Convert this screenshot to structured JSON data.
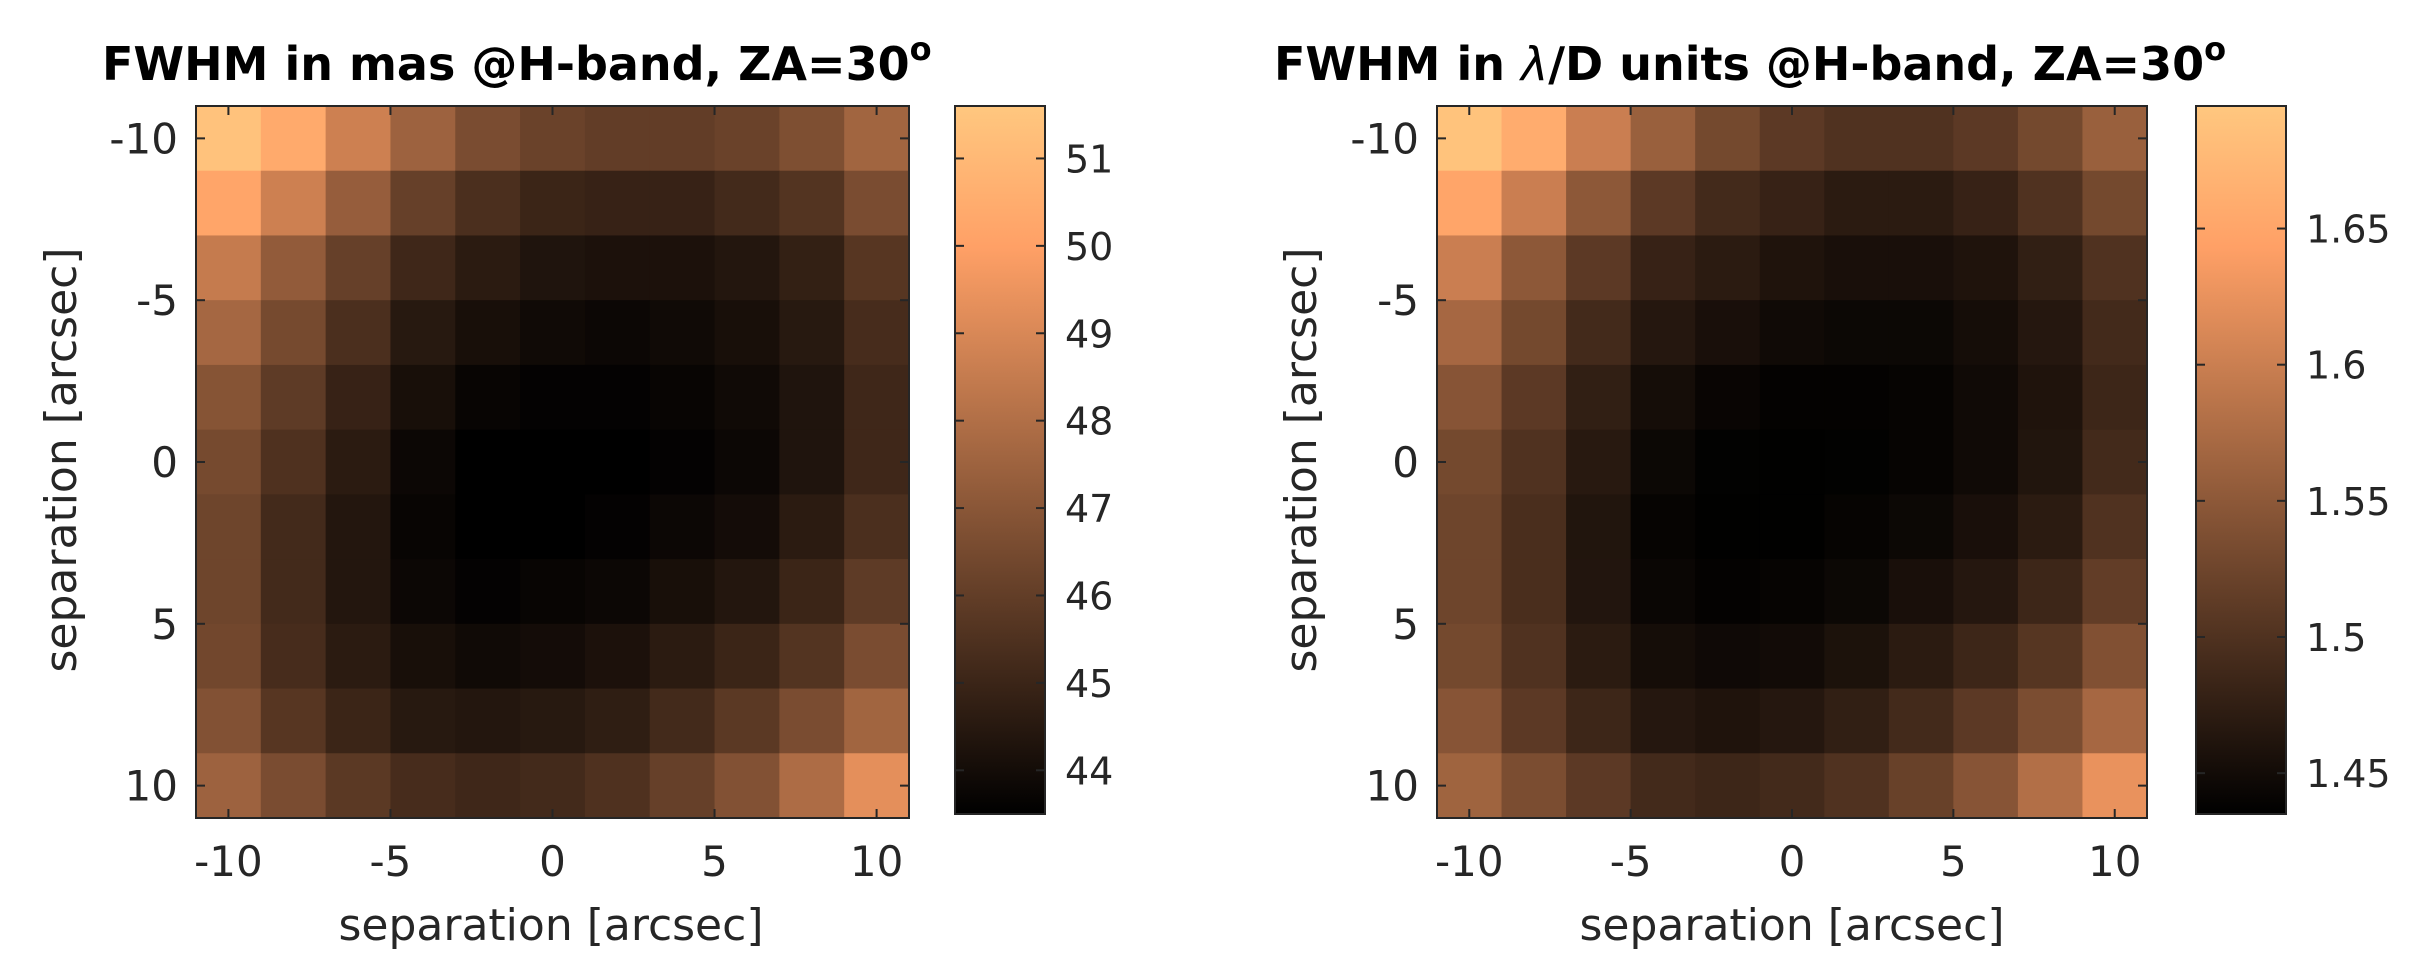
{
  "colors": {
    "colormap": "copper",
    "background": "#ffffff",
    "axis": "#262626"
  },
  "chart_data": [
    {
      "type": "heatmap",
      "title": "FWHM in mas @H-band, ZA=30",
      "title_sup": "o",
      "xlabel": "separation [arcsec]",
      "ylabel": "separation [arcsec]",
      "xlim": [
        -11,
        11
      ],
      "ylim": [
        -11,
        11
      ],
      "y_reversed": true,
      "x_centers": [
        -10,
        -8,
        -6,
        -4,
        -2,
        0,
        2,
        4,
        6,
        8,
        10
      ],
      "y_centers": [
        -10,
        -8,
        -6,
        -4,
        -2,
        0,
        2,
        4,
        6,
        8,
        10
      ],
      "xticks": [
        -10,
        -5,
        0,
        5,
        10
      ],
      "xtick_labels": [
        "-10",
        "-5",
        "0",
        "5",
        "10"
      ],
      "yticks": [
        -10,
        -5,
        0,
        5,
        10
      ],
      "ytick_labels": [
        "-10",
        "-5",
        "0",
        "5",
        "10"
      ],
      "clim": [
        43.5,
        51.6
      ],
      "colorbar_ticks": [
        44,
        45,
        46,
        47,
        48,
        49,
        50,
        51
      ],
      "colorbar_tick_labels": [
        "44",
        "45",
        "46",
        "47",
        "48",
        "49",
        "50",
        "51"
      ],
      "z": [
        [
          51.4,
          50.4,
          48.7,
          47.5,
          46.6,
          46.2,
          46.0,
          46.0,
          46.2,
          46.7,
          47.6
        ],
        [
          50.2,
          48.7,
          47.3,
          46.1,
          45.4,
          45.0,
          44.9,
          44.9,
          45.2,
          45.6,
          46.6
        ],
        [
          48.5,
          47.2,
          46.1,
          45.1,
          44.6,
          44.3,
          44.2,
          44.2,
          44.4,
          44.8,
          45.7
        ],
        [
          47.7,
          46.5,
          45.4,
          44.5,
          44.1,
          43.9,
          43.8,
          43.9,
          44.1,
          44.5,
          45.3
        ],
        [
          46.9,
          45.9,
          44.9,
          44.1,
          43.7,
          43.6,
          43.6,
          43.7,
          43.9,
          44.3,
          45.1
        ],
        [
          46.5,
          45.5,
          44.6,
          43.8,
          43.5,
          43.5,
          43.5,
          43.6,
          43.8,
          44.3,
          45.1
        ],
        [
          46.3,
          45.2,
          44.4,
          43.7,
          43.5,
          43.5,
          43.6,
          43.8,
          44.0,
          44.6,
          45.4
        ],
        [
          46.3,
          45.2,
          44.4,
          43.8,
          43.6,
          43.7,
          43.8,
          44.1,
          44.4,
          45.0,
          45.9
        ],
        [
          46.4,
          45.3,
          44.6,
          44.1,
          43.9,
          44.0,
          44.2,
          44.6,
          45.0,
          45.6,
          46.6
        ],
        [
          46.8,
          45.7,
          45.0,
          44.5,
          44.4,
          44.5,
          44.7,
          45.2,
          45.8,
          46.6,
          47.6
        ],
        [
          47.5,
          46.6,
          45.8,
          45.3,
          45.1,
          45.2,
          45.5,
          46.1,
          46.8,
          47.9,
          49.3
        ]
      ]
    },
    {
      "type": "heatmap",
      "title_pre": "FWHM in ",
      "title_lambda": "λ",
      "title_post": "/D units @H-band, ZA=30",
      "title_sup": "o",
      "xlabel": "separation [arcsec]",
      "ylabel": "separation [arcsec]",
      "xlim": [
        -11,
        11
      ],
      "ylim": [
        -11,
        11
      ],
      "y_reversed": true,
      "x_centers": [
        -10,
        -8,
        -6,
        -4,
        -2,
        0,
        2,
        4,
        6,
        8,
        10
      ],
      "y_centers": [
        -10,
        -8,
        -6,
        -4,
        -2,
        0,
        2,
        4,
        6,
        8,
        10
      ],
      "xticks": [
        -10,
        -5,
        0,
        5,
        10
      ],
      "xtick_labels": [
        "-10",
        "-5",
        "0",
        "5",
        "10"
      ],
      "yticks": [
        -10,
        -5,
        0,
        5,
        10
      ],
      "ytick_labels": [
        "-10",
        "-5",
        "0",
        "5",
        "10"
      ],
      "clim": [
        1.435,
        1.695
      ],
      "colorbar_ticks": [
        1.45,
        1.5,
        1.55,
        1.6,
        1.65
      ],
      "colorbar_tick_labels": [
        "1.45",
        "1.5",
        "1.55",
        "1.6",
        "1.65"
      ],
      "z": [
        [
          1.69,
          1.66,
          1.6,
          1.56,
          1.53,
          1.51,
          1.5,
          1.5,
          1.51,
          1.53,
          1.56
        ],
        [
          1.65,
          1.6,
          1.55,
          1.51,
          1.49,
          1.48,
          1.47,
          1.47,
          1.48,
          1.5,
          1.53
        ],
        [
          1.6,
          1.55,
          1.51,
          1.48,
          1.47,
          1.46,
          1.455,
          1.455,
          1.46,
          1.475,
          1.5
        ],
        [
          1.57,
          1.53,
          1.49,
          1.465,
          1.455,
          1.448,
          1.445,
          1.445,
          1.452,
          1.465,
          1.49
        ],
        [
          1.545,
          1.51,
          1.475,
          1.452,
          1.442,
          1.438,
          1.438,
          1.44,
          1.448,
          1.46,
          1.485
        ],
        [
          1.53,
          1.5,
          1.468,
          1.445,
          1.437,
          1.436,
          1.437,
          1.44,
          1.448,
          1.462,
          1.49
        ],
        [
          1.525,
          1.495,
          1.462,
          1.44,
          1.436,
          1.436,
          1.44,
          1.445,
          1.455,
          1.47,
          1.5
        ],
        [
          1.525,
          1.495,
          1.463,
          1.443,
          1.438,
          1.44,
          1.445,
          1.455,
          1.465,
          1.485,
          1.515
        ],
        [
          1.53,
          1.5,
          1.47,
          1.452,
          1.447,
          1.45,
          1.458,
          1.47,
          1.485,
          1.505,
          1.54
        ],
        [
          1.545,
          1.51,
          1.485,
          1.465,
          1.46,
          1.465,
          1.475,
          1.49,
          1.51,
          1.535,
          1.57
        ],
        [
          1.565,
          1.535,
          1.51,
          1.49,
          1.485,
          1.49,
          1.5,
          1.52,
          1.545,
          1.58,
          1.625
        ]
      ]
    }
  ]
}
